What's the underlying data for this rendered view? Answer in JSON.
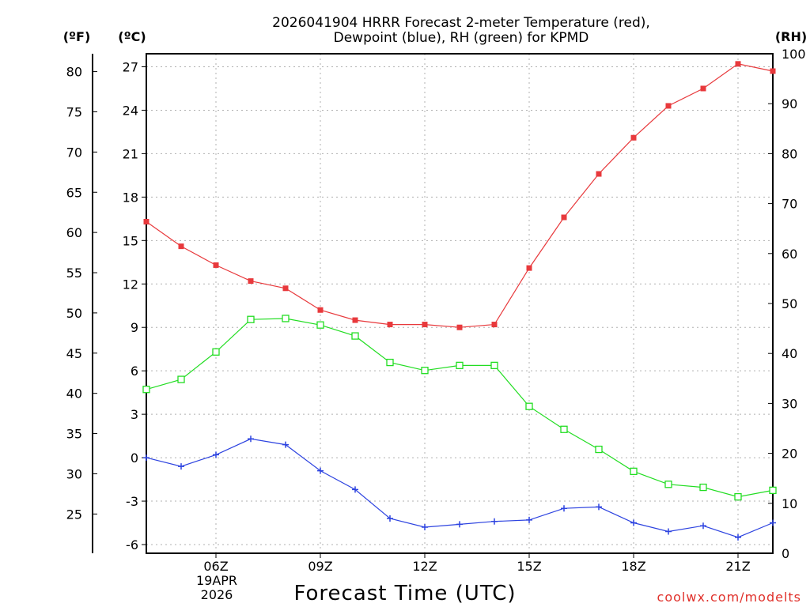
{
  "chart_data": {
    "type": "line",
    "title_line1": "2026041904 HRRR Forecast 2-meter Temperature (red),",
    "title_line2": "Dewpoint (blue), RH (green) for KPMD",
    "units": {
      "fahrenheit": "(ºF)",
      "celsius": "(ºC)",
      "rh": "(RH)"
    },
    "xlabel": "Forecast Time (UTC)",
    "x_ticks": [
      {
        "hour": 6,
        "label": "06Z"
      },
      {
        "hour": 9,
        "label": "09Z"
      },
      {
        "hour": 12,
        "label": "12Z"
      },
      {
        "hour": 15,
        "label": "15Z"
      },
      {
        "hour": 18,
        "label": "18Z"
      },
      {
        "hour": 21,
        "label": "21Z"
      }
    ],
    "date_label_line1": "19APR",
    "date_label_line2": "2026",
    "xlim": [
      4.0,
      22.0
    ],
    "y_celsius": {
      "lim": [
        -6.6,
        27.9
      ],
      "ticks": [
        -6,
        -3,
        0,
        3,
        6,
        9,
        12,
        15,
        18,
        21,
        24,
        27
      ]
    },
    "y_fahrenheit": {
      "ticks": [
        25,
        30,
        35,
        40,
        45,
        50,
        55,
        60,
        65,
        70,
        75,
        80
      ]
    },
    "y_rh": {
      "lim": [
        0,
        100
      ],
      "ticks": [
        0,
        10,
        20,
        30,
        40,
        50,
        60,
        70,
        80,
        90,
        100
      ]
    },
    "series": [
      {
        "name": "Temperature",
        "axis": "celsius",
        "color": "#e8393c",
        "marker": "filled-square",
        "x": [
          4,
          5,
          6,
          7,
          8,
          9,
          10,
          11,
          12,
          13,
          14,
          15,
          16,
          17,
          18,
          19,
          20,
          21,
          22
        ],
        "values": [
          16.3,
          14.6,
          13.3,
          12.2,
          11.7,
          10.2,
          9.5,
          9.2,
          9.2,
          9.0,
          9.2,
          13.1,
          16.6,
          19.6,
          22.1,
          24.3,
          25.5,
          27.2,
          26.7
        ]
      },
      {
        "name": "Dewpoint",
        "axis": "celsius",
        "color": "#2d43e0",
        "marker": "plus",
        "x": [
          4,
          5,
          6,
          7,
          8,
          9,
          10,
          11,
          12,
          13,
          14,
          15,
          16,
          17,
          18,
          19,
          20,
          21,
          22
        ],
        "values": [
          0.0,
          -0.6,
          0.2,
          1.3,
          0.9,
          -0.9,
          -2.2,
          -4.2,
          -4.8,
          -4.6,
          -4.4,
          -4.3,
          -3.5,
          -3.4,
          -4.5,
          -5.1,
          -4.7,
          -5.5,
          -4.5
        ]
      },
      {
        "name": "RH",
        "axis": "rh",
        "color": "#22dd22",
        "marker": "open-square",
        "x": [
          4,
          5,
          6,
          7,
          8,
          9,
          10,
          11,
          12,
          13,
          14,
          15,
          16,
          17,
          18,
          19,
          20,
          21,
          22
        ],
        "values": [
          32.8,
          34.8,
          40.3,
          46.8,
          47.0,
          45.7,
          43.5,
          38.2,
          36.6,
          37.6,
          37.6,
          29.4,
          24.8,
          20.8,
          16.4,
          13.8,
          13.2,
          11.3,
          12.6
        ]
      }
    ]
  },
  "credit": "coolwx.com/modelts"
}
